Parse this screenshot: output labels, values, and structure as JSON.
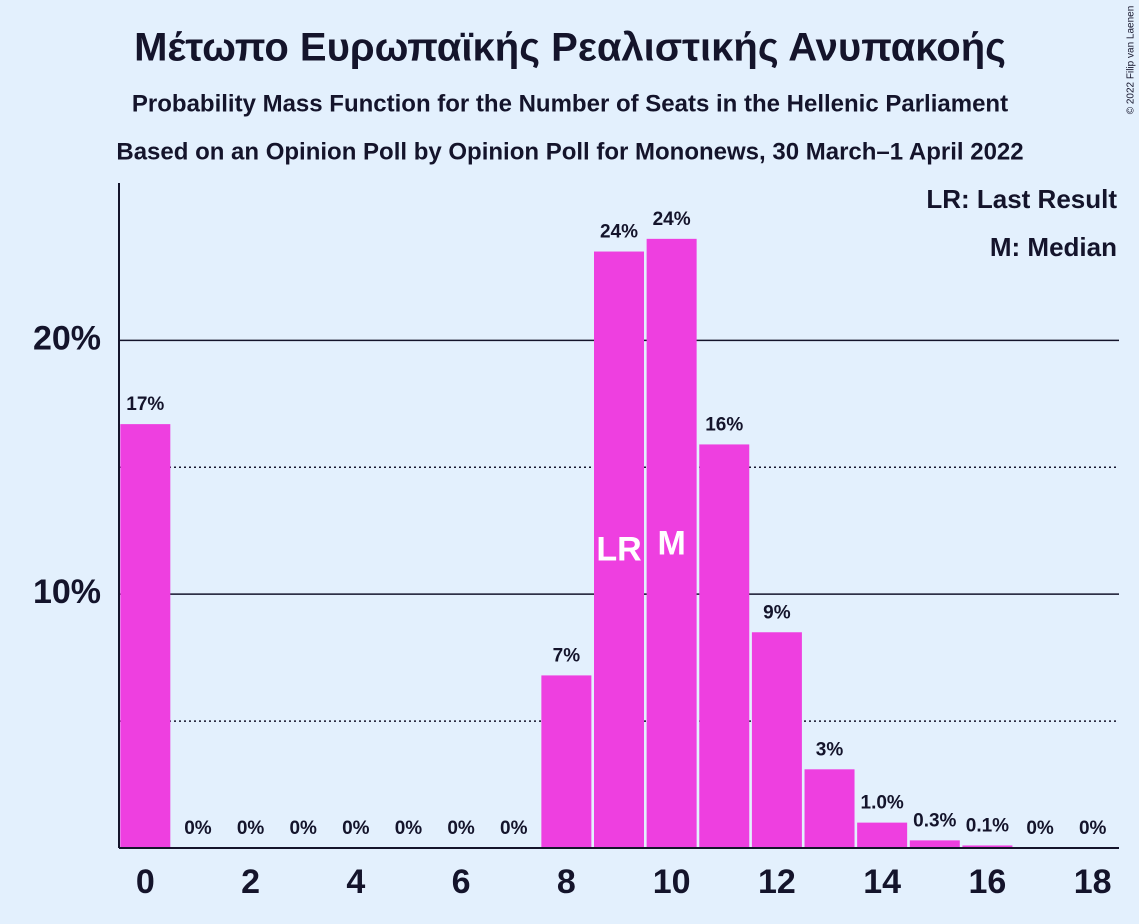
{
  "chart_data": {
    "type": "bar",
    "title": "Μέτωπο Ευρωπαϊκής Ρεαλιστικής Ανυπακοής",
    "subtitle": "Probability Mass Function for the Number of Seats in the Hellenic Parliament",
    "subtitle2": "Based on an Opinion Poll by Opinion Poll for Mononews, 30 March–1 April 2022",
    "copyright": "© 2022 Filip van Laenen",
    "x": [
      0,
      1,
      2,
      3,
      4,
      5,
      6,
      7,
      8,
      9,
      10,
      11,
      12,
      13,
      14,
      15,
      16,
      17,
      18
    ],
    "values": [
      16.7,
      0,
      0,
      0,
      0,
      0,
      0,
      0,
      6.8,
      23.5,
      24.0,
      15.9,
      8.5,
      3.1,
      1.0,
      0.3,
      0.1,
      0,
      0
    ],
    "value_labels": [
      "17%",
      "0%",
      "0%",
      "0%",
      "0%",
      "0%",
      "0%",
      "0%",
      "7%",
      "24%",
      "24%",
      "16%",
      "9%",
      "3%",
      "1.0%",
      "0.3%",
      "0.1%",
      "0%",
      "0%"
    ],
    "color": "#ee3fe0",
    "xlim": [
      -0.5,
      18.5
    ],
    "xticks": [
      0,
      2,
      4,
      6,
      8,
      10,
      12,
      14,
      16,
      18
    ],
    "ylim": [
      0,
      26.2
    ],
    "yticks": [
      {
        "value": 10,
        "label": "10%"
      },
      {
        "value": 20,
        "label": "20%"
      }
    ],
    "minor_yticks": [
      5,
      15
    ],
    "grid": true,
    "annotations": [
      {
        "text": "LR",
        "x": 9
      },
      {
        "text": "M",
        "x": 10
      }
    ],
    "legend_notes": [
      "LR: Last Result",
      "M: Median"
    ],
    "legend_position": "upper right"
  }
}
